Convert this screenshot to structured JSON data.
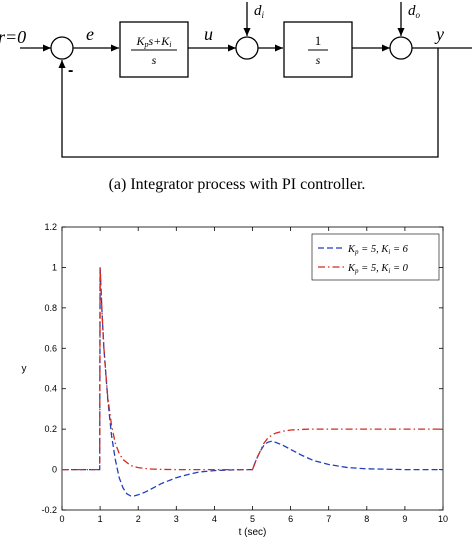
{
  "diagram": {
    "reference_label": "r=0",
    "error_label": "e",
    "control_label": "u",
    "output_label": "y",
    "input_disturbance": {
      "symbol": "d",
      "subscript": "i"
    },
    "output_disturbance": {
      "symbol": "d",
      "subscript": "o"
    },
    "minus_sign": "-",
    "controller_block": {
      "num_a": "K",
      "num_a_sub": "p",
      "num_b": "s+K",
      "num_b_sub": "i",
      "den": "s"
    },
    "plant_block": {
      "num": "1",
      "den": "s"
    }
  },
  "caption": "(a) Integrator process with PI controller.",
  "chart_data": {
    "type": "line",
    "title": "",
    "xlabel": "t (sec)",
    "ylabel": "y",
    "xlim": [
      0,
      10
    ],
    "ylim": [
      -0.2,
      1.2
    ],
    "xticks": [
      0,
      1,
      2,
      3,
      4,
      5,
      6,
      7,
      8,
      9,
      10
    ],
    "yticks": [
      -0.2,
      0,
      0.2,
      0.4,
      0.6,
      0.8,
      1,
      1.2
    ],
    "grid": false,
    "legend_position": "top-right",
    "legend": [
      {
        "text_a": "K",
        "sub_a": "p",
        "text_b": " = 5, K",
        "sub_b": "i",
        "text_c": " = 6"
      },
      {
        "text_a": "K",
        "sub_a": "p",
        "text_b": " = 5, K",
        "sub_b": "i",
        "text_c": " = 0"
      }
    ],
    "series": [
      {
        "style": "dashed",
        "color": "#1f3fbf",
        "x": [
          0,
          0.99,
          1.0,
          1.05,
          1.1,
          1.2,
          1.3,
          1.4,
          1.5,
          1.6,
          1.7,
          1.8,
          1.9,
          2.0,
          2.2,
          2.4,
          2.6,
          2.8,
          3.0,
          3.3,
          3.6,
          4.0,
          4.4,
          4.8,
          4.99,
          5.0,
          5.1,
          5.2,
          5.3,
          5.4,
          5.5,
          5.6,
          5.8,
          6.0,
          6.3,
          6.6,
          7.0,
          7.5,
          8.0,
          9.0,
          10.0
        ],
        "y": [
          0,
          0,
          1.0,
          0.78,
          0.6,
          0.35,
          0.17,
          0.05,
          -0.04,
          -0.09,
          -0.12,
          -0.13,
          -0.13,
          -0.125,
          -0.11,
          -0.09,
          -0.07,
          -0.055,
          -0.04,
          -0.025,
          -0.012,
          -0.005,
          -0.002,
          0,
          0,
          0,
          0.05,
          0.09,
          0.12,
          0.135,
          0.14,
          0.135,
          0.12,
          0.1,
          0.07,
          0.045,
          0.025,
          0.01,
          0.004,
          0,
          0
        ]
      },
      {
        "style": "dashdot",
        "color": "#d42a1f",
        "x": [
          0,
          0.99,
          1.0,
          1.05,
          1.1,
          1.2,
          1.3,
          1.4,
          1.5,
          1.6,
          1.8,
          2.0,
          2.3,
          2.6,
          3.0,
          4.0,
          4.99,
          5.0,
          5.1,
          5.2,
          5.3,
          5.4,
          5.5,
          5.6,
          5.8,
          6.0,
          6.5,
          7.0,
          8.0,
          9.0,
          10.0
        ],
        "y": [
          0,
          0,
          1.0,
          0.78,
          0.6,
          0.36,
          0.22,
          0.13,
          0.08,
          0.05,
          0.02,
          0.01,
          0.003,
          0.001,
          0,
          0,
          0,
          0,
          0.05,
          0.09,
          0.13,
          0.155,
          0.17,
          0.18,
          0.19,
          0.196,
          0.2,
          0.2,
          0.2,
          0.2,
          0.2
        ]
      }
    ]
  }
}
